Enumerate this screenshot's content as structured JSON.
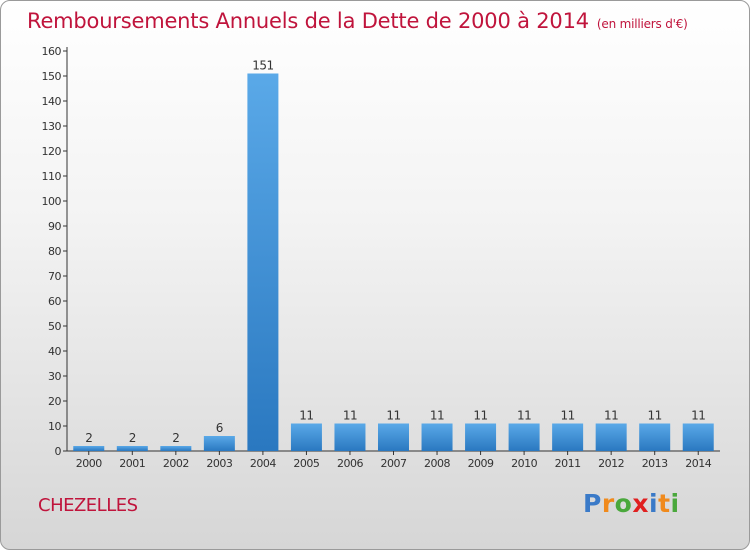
{
  "title": "Remboursements Annuels de la Dette de 2000 à 2014",
  "unit": "(en milliers d'€)",
  "commune": "CHEZELLES",
  "logo": {
    "letters": [
      "P",
      "r",
      "o",
      "x",
      "i",
      "t",
      "i"
    ],
    "colors": [
      "#3a7ac8",
      "#f08a1c",
      "#4aa83c",
      "#e02020",
      "#3a7ac8",
      "#f08a1c",
      "#4aa83c"
    ]
  },
  "colors": {
    "accent": "#c0143c",
    "bar_top": "#5aa9e8",
    "bar_bottom": "#2a78c0"
  },
  "chart_data": {
    "type": "bar",
    "categories": [
      "2000",
      "2001",
      "2002",
      "2003",
      "2004",
      "2005",
      "2006",
      "2007",
      "2008",
      "2009",
      "2010",
      "2011",
      "2012",
      "2013",
      "2014"
    ],
    "values": [
      2,
      2,
      2,
      6,
      151,
      11,
      11,
      11,
      11,
      11,
      11,
      11,
      11,
      11,
      11
    ],
    "data_labels": [
      "2",
      "2",
      "2",
      "6",
      "151",
      "11",
      "11",
      "11",
      "11",
      "11",
      "11",
      "11",
      "11",
      "11",
      "11"
    ],
    "ylim": [
      0,
      160
    ],
    "yticks": [
      0,
      10,
      20,
      30,
      40,
      50,
      60,
      70,
      80,
      90,
      100,
      110,
      120,
      130,
      140,
      150,
      160
    ],
    "grid": false,
    "legend": "none"
  }
}
